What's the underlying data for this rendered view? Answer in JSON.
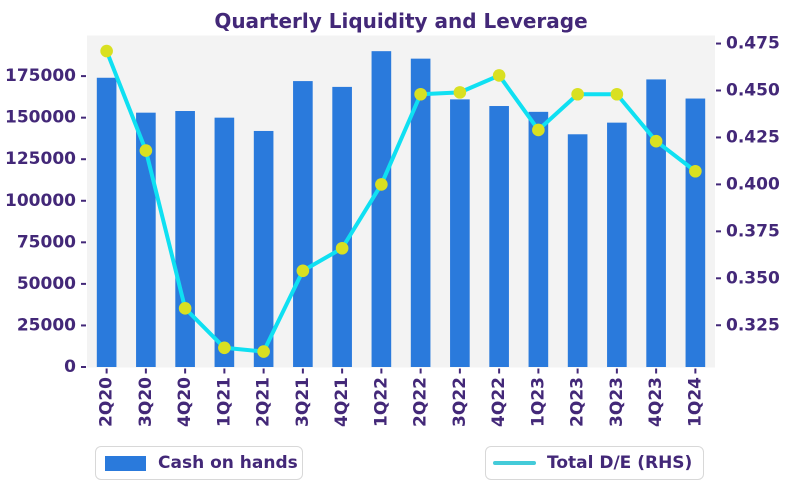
{
  "title": "Quarterly Liquidity and Leverage",
  "legend": {
    "cash_label": "Cash on hands",
    "de_label": "Total D/E (RHS)"
  },
  "colors": {
    "text": "#432878",
    "bar": "#2a7adc",
    "line": "#0fe0f2",
    "marker": "#d9e021",
    "plot_background": "#f3f3f3",
    "legend_border": "#d8d8d8",
    "legend_line": "#44cbd9",
    "figure_background": "#ffffff"
  },
  "chart_data": {
    "type": "bar+line",
    "title": "Quarterly Liquidity and Leverage",
    "categories": [
      "2Q20",
      "3Q20",
      "4Q20",
      "1Q21",
      "2Q21",
      "3Q21",
      "4Q21",
      "1Q22",
      "2Q22",
      "3Q22",
      "4Q22",
      "1Q23",
      "2Q23",
      "3Q23",
      "4Q23",
      "1Q24"
    ],
    "series": [
      {
        "name": "Cash on hands",
        "type": "bar",
        "axis": "left",
        "values": [
          174000,
          153000,
          154000,
          150000,
          142000,
          172000,
          168500,
          190000,
          185500,
          161000,
          157000,
          153500,
          140000,
          147000,
          173000,
          161500
        ]
      },
      {
        "name": "Total D/E (RHS)",
        "type": "line",
        "axis": "right",
        "values": [
          0.471,
          0.418,
          0.334,
          0.313,
          0.311,
          0.354,
          0.366,
          0.4,
          0.448,
          0.449,
          0.458,
          0.429,
          0.448,
          0.448,
          0.423,
          0.407
        ]
      }
    ],
    "left_axis": {
      "ticks": [
        0,
        25000,
        50000,
        75000,
        100000,
        125000,
        150000,
        175000
      ],
      "tick_labels": [
        "0",
        "25000",
        "50000",
        "75000",
        "100000",
        "125000",
        "150000",
        "175000"
      ],
      "range": [
        0,
        199400
      ]
    },
    "right_axis": {
      "ticks": [
        0.325,
        0.35,
        0.375,
        0.4,
        0.425,
        0.45,
        0.475
      ],
      "tick_labels": [
        "0.325",
        "0.350",
        "0.375",
        "0.400",
        "0.425",
        "0.450",
        "0.475"
      ],
      "range": [
        0.303,
        0.479
      ]
    },
    "grid": false,
    "legend_position": "bottom"
  }
}
